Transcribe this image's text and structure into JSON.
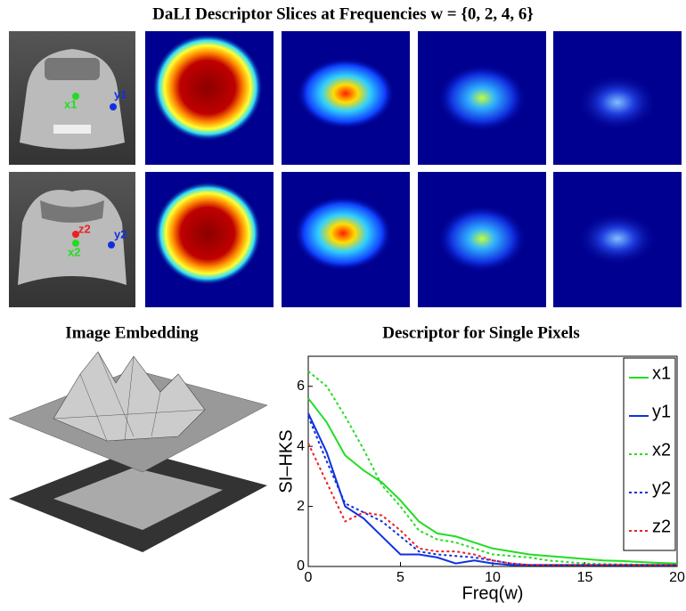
{
  "header": {
    "title": "DaLI Descriptor Slices at Frequencies w = {0, 2, 4, 6}"
  },
  "slices": {
    "annotations": [
      {
        "label": "x1",
        "color": "#22dd22"
      },
      {
        "label": "y1",
        "color": "#1030e0"
      },
      {
        "label": "z2",
        "color": "#ee2020"
      },
      {
        "label": "x2",
        "color": "#22dd22"
      },
      {
        "label": "y2",
        "color": "#1030e0"
      }
    ]
  },
  "embedding": {
    "title": "Image Embedding"
  },
  "chart_data": {
    "type": "line",
    "title": "Descriptor for Single Pixels",
    "x_label": "Freq(w)",
    "y_label": "SI–HKS",
    "x": [
      0,
      1,
      2,
      3,
      4,
      5,
      6,
      7,
      8,
      9,
      10,
      11,
      12,
      13,
      14,
      15,
      16,
      17,
      18,
      19,
      20
    ],
    "xlim": [
      0,
      20
    ],
    "xticks": [
      0,
      5,
      10,
      15,
      20
    ],
    "ylim": [
      0,
      7
    ],
    "yticks": [
      0,
      2,
      4,
      6
    ],
    "legend": "right",
    "series": [
      {
        "name": "x1",
        "color": "#22dd22",
        "style": "solid",
        "values": [
          5.6,
          4.8,
          3.7,
          3.2,
          2.8,
          2.2,
          1.5,
          1.1,
          1.0,
          0.8,
          0.6,
          0.5,
          0.4,
          0.35,
          0.3,
          0.25,
          0.2,
          0.18,
          0.15,
          0.12,
          0.1
        ]
      },
      {
        "name": "y1",
        "color": "#1030e0",
        "style": "solid",
        "values": [
          5.1,
          3.8,
          2.0,
          1.6,
          1.0,
          0.4,
          0.4,
          0.3,
          0.1,
          0.2,
          0.1,
          0.05,
          0.05,
          0.05,
          0.05,
          0.05,
          0.05,
          0.05,
          0.05,
          0.05,
          0.05
        ]
      },
      {
        "name": "x2",
        "color": "#22dd22",
        "style": "dotted",
        "values": [
          6.5,
          6.0,
          5.0,
          3.9,
          2.7,
          2.0,
          1.2,
          0.9,
          0.8,
          0.6,
          0.4,
          0.35,
          0.3,
          0.2,
          0.15,
          0.1,
          0.08,
          0.07,
          0.06,
          0.05,
          0.05
        ]
      },
      {
        "name": "y2",
        "color": "#1030e0",
        "style": "dotted",
        "values": [
          5.0,
          3.5,
          2.1,
          1.8,
          1.5,
          1.0,
          0.5,
          0.4,
          0.35,
          0.3,
          0.2,
          0.1,
          0.05,
          0.05,
          0.05,
          0.05,
          0.05,
          0.05,
          0.05,
          0.05,
          0.05
        ]
      },
      {
        "name": "z2",
        "color": "#ee2020",
        "style": "dotted",
        "values": [
          4.1,
          2.8,
          1.5,
          1.8,
          1.7,
          1.2,
          0.6,
          0.5,
          0.5,
          0.4,
          0.2,
          0.1,
          0.05,
          0.05,
          0.05,
          0.05,
          0.05,
          0.05,
          0.05,
          0.05,
          0.05
        ]
      }
    ]
  }
}
